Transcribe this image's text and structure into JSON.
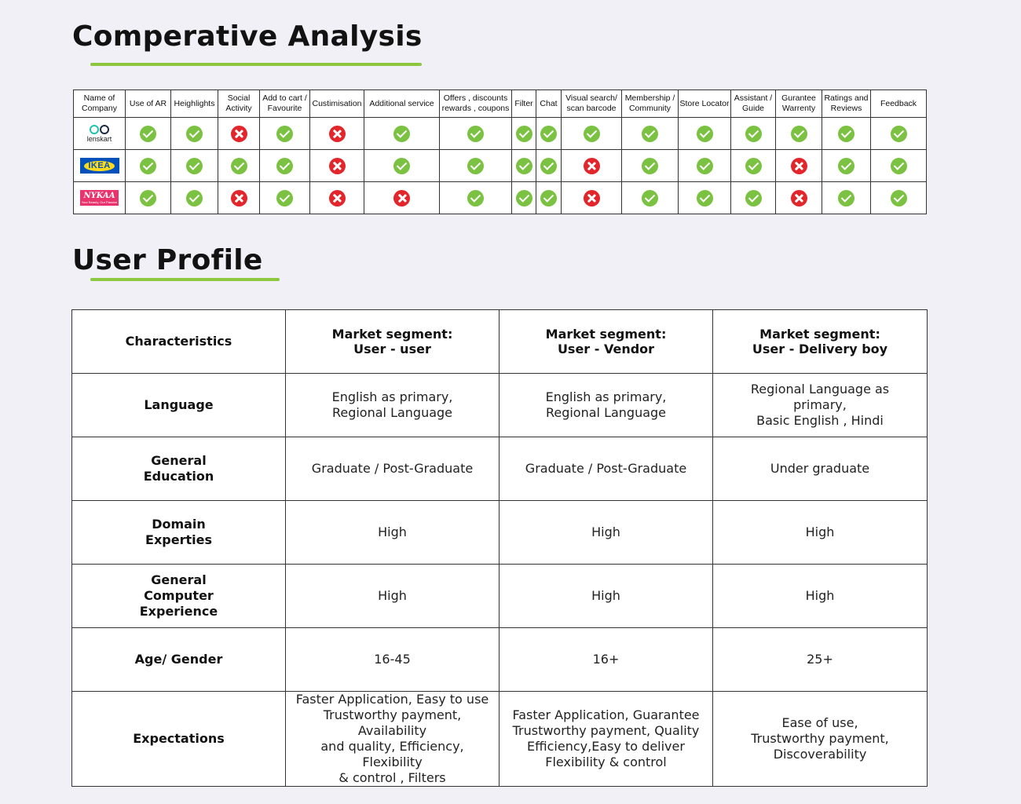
{
  "comparative": {
    "title": "Comperative Analysis",
    "columns": [
      "Name of Company",
      "Use of AR",
      "Heighlights",
      "Social Activity",
      "Add to cart / Favourite",
      "Custimisation",
      "Additional service",
      "Offers , discounts rewards , coupons",
      "Filter",
      "Chat",
      "Visual search/ scan barcode",
      "Membership / Community",
      "Store Locator",
      "Assistant / Guide",
      "Gurantee Warrenty",
      "Ratings and Reviews",
      "Feedback"
    ],
    "companies": [
      {
        "name": "lenskart",
        "logo_text": "lenskart",
        "marks": [
          true,
          true,
          false,
          true,
          false,
          true,
          true,
          true,
          true,
          true,
          true,
          true,
          true,
          true,
          true,
          true
        ]
      },
      {
        "name": "IKEA",
        "logo_text": "IKEA",
        "marks": [
          true,
          true,
          true,
          true,
          false,
          true,
          true,
          true,
          true,
          false,
          true,
          true,
          true,
          false,
          true,
          true
        ]
      },
      {
        "name": "Nykaa",
        "logo_text": "NYKAA",
        "logo_tagline": "Your Beauty, Our Passion",
        "marks": [
          true,
          true,
          false,
          true,
          false,
          false,
          true,
          true,
          true,
          false,
          true,
          true,
          true,
          false,
          true,
          true
        ]
      }
    ],
    "colors": {
      "check": "#7cc242",
      "cross": "#e3262c",
      "accent": "#8dc63f"
    }
  },
  "profile": {
    "title": "User Profile",
    "header": {
      "c0": "Characteristics",
      "c1": "Market segment:\nUser - user",
      "c2": "Market segment:\nUser - Vendor",
      "c3": "Market segment:\nUser - Delivery boy"
    },
    "rows": [
      {
        "label": "Language",
        "user": "English as primary,\nRegional Language",
        "vendor": "English as primary,\nRegional Language",
        "delivery": "Regional Language as\nprimary,\nBasic English , Hindi"
      },
      {
        "label": "General\nEducation",
        "user": "Graduate / Post-Graduate",
        "vendor": "Graduate / Post-Graduate",
        "delivery": "Under graduate"
      },
      {
        "label": "Domain\nExperties",
        "user": "High",
        "vendor": "High",
        "delivery": "High"
      },
      {
        "label": "General\nComputer\nExperience",
        "user": "High",
        "vendor": "High",
        "delivery": "High"
      },
      {
        "label": "Age/ Gender",
        "user": "16-45",
        "vendor": "16+",
        "delivery": "25+"
      },
      {
        "label": "Expectations",
        "user": "Faster Application, Easy to use\nTrustworthy payment, Availability\nand quality, Efficiency, Flexibility\n& control , Filters",
        "vendor": "Faster Application, Guarantee\nTrustworthy payment, Quality\nEfficiency,Easy to deliver\nFlexibility & control",
        "delivery": "Ease of use,\nTrustworthy payment,\nDiscoverability"
      }
    ]
  }
}
